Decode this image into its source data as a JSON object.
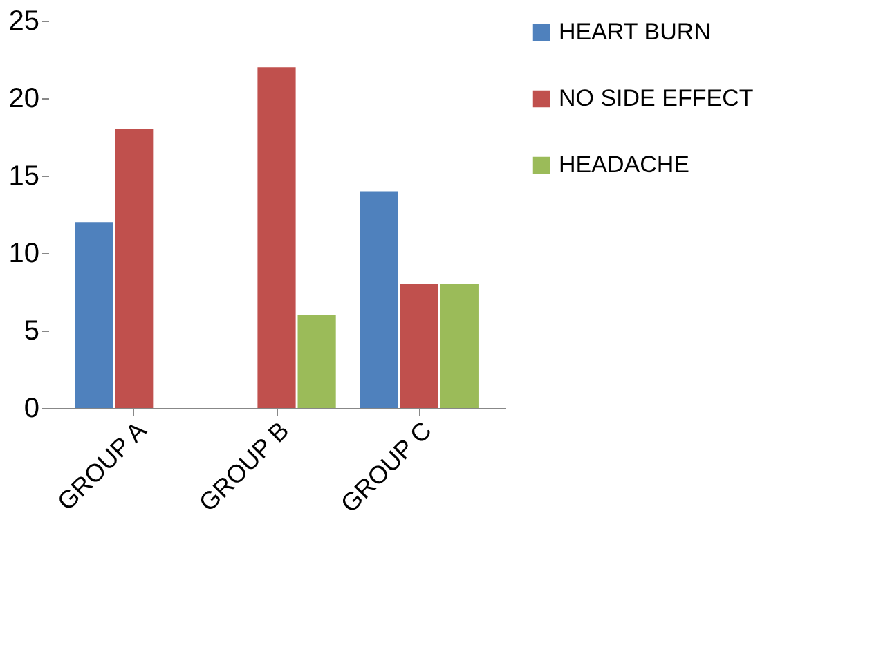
{
  "chart_data": {
    "type": "bar",
    "categories": [
      "GROUP A",
      "GROUP B",
      "GROUP C",
      null
    ],
    "series": [
      {
        "name": "HEART BURN",
        "color": "#4f81bd",
        "values": [
          12,
          0,
          14,
          null
        ]
      },
      {
        "name": "NO SIDE EFFECT",
        "color": "#c0504d",
        "values": [
          18,
          22,
          8,
          null
        ]
      },
      {
        "name": "HEADACHE",
        "color": "#9bbb59",
        "values": [
          0,
          6,
          8,
          null
        ]
      }
    ],
    "ylim": [
      0,
      25
    ],
    "yticks": [
      0,
      5,
      10,
      15,
      20,
      25
    ],
    "grid": false,
    "legend": "right"
  }
}
